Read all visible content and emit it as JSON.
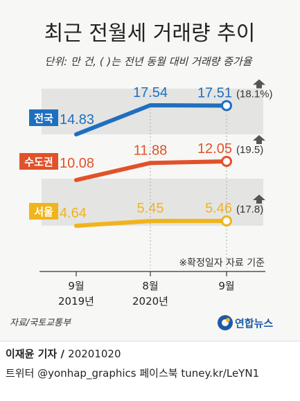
{
  "title": "최근 전월세 거래량 추이",
  "subtitle": "단위: 만 건, ( )는 전년 동월 대비 거래량 증가율",
  "note": "※확정일자 자료 기준",
  "source": "자료/국토교통부",
  "logo_text": "연합뉴스",
  "byline": "이재윤 기자",
  "date": "20201020",
  "social": "트위터 @yonhap_graphics  페이스북 tuney.kr/LeYN1",
  "colors": {
    "전국": "#1f6fbf",
    "수도권": "#e0522a",
    "서울": "#f0b41c",
    "band": "#e4e4e2",
    "arrow": "#555555"
  },
  "chart_data": {
    "type": "line",
    "categories": [
      {
        "month": "9월",
        "year": "2019년"
      },
      {
        "month": "8월",
        "year": "2020년"
      },
      {
        "month": "9월",
        "year": ""
      }
    ],
    "series": [
      {
        "name": "전국",
        "values": [
          14.83,
          17.54,
          17.51
        ],
        "labels": [
          "14.83",
          "17.54",
          "17.51"
        ],
        "growth": "(18.1%)"
      },
      {
        "name": "수도권",
        "values": [
          10.08,
          11.88,
          12.05
        ],
        "labels": [
          "10.08",
          "11.88",
          "12.05"
        ],
        "growth": "(19.5)"
      },
      {
        "name": "서울",
        "values": [
          4.64,
          5.45,
          5.46
        ],
        "labels": [
          "4.64",
          "5.45",
          "5.46"
        ],
        "growth": "(17.8)"
      }
    ]
  }
}
